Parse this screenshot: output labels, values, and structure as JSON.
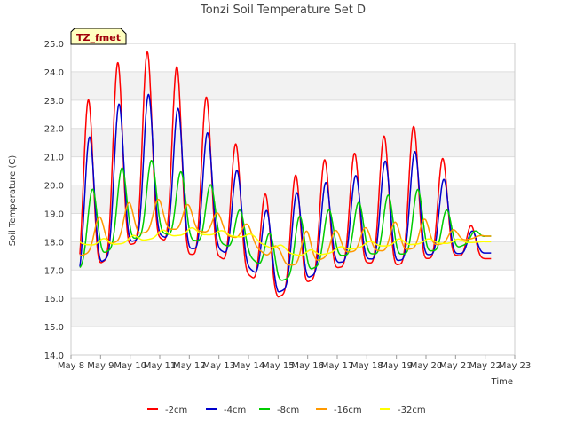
{
  "chart_data": {
    "type": "line",
    "title": "Tonzi Soil Temperature Set D",
    "xlabel": "Time",
    "ylabel": "Soil Temperature (C)",
    "badge": "TZ_fmet",
    "ylim": [
      14.0,
      25.0
    ],
    "yticks": [
      14.0,
      15.0,
      16.0,
      17.0,
      18.0,
      19.0,
      20.0,
      21.0,
      22.0,
      23.0,
      24.0,
      25.0
    ],
    "ytick_labels": [
      "14.0",
      "15.0",
      "16.0",
      "17.0",
      "18.0",
      "19.0",
      "20.0",
      "21.0",
      "22.0",
      "23.0",
      "24.0",
      "25.0"
    ],
    "xlim": [
      0,
      15
    ],
    "x_unit": "days from May 8",
    "xticks": [
      0,
      1,
      2,
      3,
      4,
      5,
      6,
      7,
      8,
      9,
      10,
      11,
      12,
      13,
      14,
      15
    ],
    "xtick_labels": [
      "May 8",
      "May 9",
      "May 10",
      "May 11",
      "May 12",
      "May 13",
      "May 14",
      "May 15",
      "May 16",
      "May 17",
      "May 18",
      "May 19",
      "May 20",
      "May 21",
      "May 22",
      "May 23"
    ],
    "grid": true,
    "legend_position": "bottom",
    "data_range": [
      0.3,
      14.2
    ],
    "series": [
      {
        "name": "-2cm",
        "color": "#ff0000",
        "daily": [
          [
            14.9,
            21.9
          ],
          [
            15.6,
            23.8
          ],
          [
            16.2,
            24.7
          ],
          [
            16.5,
            24.7
          ],
          [
            16.0,
            23.8
          ],
          [
            16.2,
            22.6
          ],
          [
            15.9,
            20.6
          ],
          [
            15.3,
            19.0
          ],
          [
            15.4,
            21.3
          ],
          [
            16.2,
            20.6
          ],
          [
            16.2,
            21.5
          ],
          [
            16.0,
            21.9
          ],
          [
            16.2,
            22.2
          ],
          [
            16.9,
            20.0
          ],
          [
            17.4,
            17.4
          ]
        ],
        "phase": 0.58
      },
      {
        "name": "-4cm",
        "color": "#0000cc",
        "daily": [
          [
            15.5,
            20.7
          ],
          [
            16.0,
            22.3
          ],
          [
            16.7,
            23.2
          ],
          [
            17.0,
            23.2
          ],
          [
            16.6,
            22.4
          ],
          [
            16.8,
            21.5
          ],
          [
            16.4,
            19.9
          ],
          [
            15.6,
            18.6
          ],
          [
            15.8,
            20.4
          ],
          [
            16.6,
            19.9
          ],
          [
            16.6,
            20.6
          ],
          [
            16.4,
            21.0
          ],
          [
            16.6,
            21.3
          ],
          [
            17.1,
            19.5
          ],
          [
            17.6,
            17.6
          ]
        ],
        "phase": 0.62
      },
      {
        "name": "-8cm",
        "color": "#00cc00",
        "daily": [
          [
            16.3,
            19.2
          ],
          [
            16.9,
            20.1
          ],
          [
            17.4,
            20.8
          ],
          [
            17.7,
            20.9
          ],
          [
            17.5,
            20.3
          ],
          [
            17.5,
            19.9
          ],
          [
            17.2,
            18.8
          ],
          [
            16.2,
            18.1
          ],
          [
            16.4,
            19.2
          ],
          [
            17.1,
            19.1
          ],
          [
            17.1,
            19.5
          ],
          [
            17.0,
            19.7
          ],
          [
            17.1,
            19.9
          ],
          [
            17.5,
            18.8
          ],
          [
            18.2,
            18.2
          ]
        ],
        "phase": 0.72
      },
      {
        "name": "-16cm",
        "color": "#ff9900",
        "daily": [
          [
            17.1,
            18.4
          ],
          [
            17.5,
            18.9
          ],
          [
            17.9,
            19.4
          ],
          [
            18.2,
            19.5
          ],
          [
            18.2,
            19.3
          ],
          [
            18.1,
            19.0
          ],
          [
            17.9,
            18.6
          ],
          [
            17.0,
            17.8
          ],
          [
            16.9,
            18.4
          ],
          [
            17.4,
            18.4
          ],
          [
            17.5,
            18.5
          ],
          [
            17.4,
            18.7
          ],
          [
            17.6,
            18.8
          ],
          [
            17.9,
            18.4
          ],
          [
            18.2,
            18.2
          ]
        ],
        "phase": 0.95
      },
      {
        "name": "-32cm",
        "color": "#ffff00",
        "daily": [
          [
            17.9,
            18.1
          ],
          [
            17.8,
            18.1
          ],
          [
            17.9,
            18.2
          ],
          [
            18.1,
            18.4
          ],
          [
            18.2,
            18.5
          ],
          [
            18.2,
            18.4
          ],
          [
            18.1,
            18.3
          ],
          [
            17.6,
            17.9
          ],
          [
            17.4,
            17.7
          ],
          [
            17.6,
            17.8
          ],
          [
            17.8,
            18.0
          ],
          [
            17.8,
            18.1
          ],
          [
            17.9,
            18.1
          ],
          [
            17.9,
            18.1
          ],
          [
            18.0,
            18.0
          ]
        ],
        "phase": 1.1
      }
    ]
  }
}
